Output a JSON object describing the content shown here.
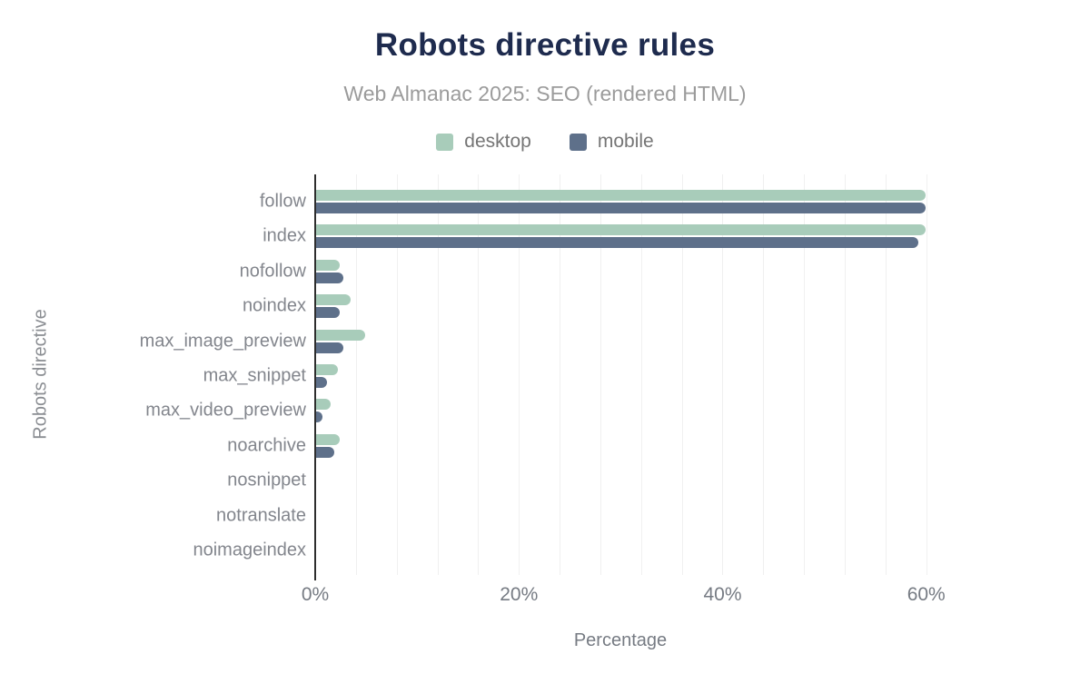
{
  "header": {
    "title": "Robots directive rules",
    "subtitle": "Web Almanac 2025: SEO (rendered HTML)"
  },
  "legend": [
    {
      "label": "desktop",
      "color": "#a8ccba"
    },
    {
      "label": "mobile",
      "color": "#5e708a"
    }
  ],
  "axes": {
    "xlabel": "Percentage",
    "ylabel": "Robots directive"
  },
  "colors": {
    "title": "#1e2b4e",
    "subtitle": "#9b9b9b",
    "desktop_bar": "#a8ccba",
    "mobile_bar": "#5e708a",
    "gridline": "#f0f0f0",
    "axis_line": "#2e2e2e",
    "label_text": "#83868d"
  },
  "chart_data": {
    "type": "bar",
    "orientation": "horizontal",
    "title": "Robots directive rules",
    "subtitle": "Web Almanac 2025: SEO (rendered HTML)",
    "xlabel": "Percentage",
    "ylabel": "Robots directive",
    "unit": "%",
    "xlim": [
      0,
      66
    ],
    "x_ticks": [
      0,
      20,
      40,
      60
    ],
    "x_tick_labels": [
      "0%",
      "20%",
      "40%",
      "60%"
    ],
    "gridline_step_percent": 4,
    "grid": true,
    "legend_position": "top",
    "categories": [
      "follow",
      "index",
      "nofollow",
      "noindex",
      "max_image_preview",
      "max_snippet",
      "max_video_preview",
      "noarchive",
      "nosnippet",
      "notranslate",
      "noimageindex"
    ],
    "series": [
      {
        "name": "desktop",
        "color": "#a8ccba",
        "values": [
          59.9,
          59.9,
          2.4,
          3.5,
          4.9,
          2.2,
          1.5,
          2.4,
          0,
          0,
          0
        ]
      },
      {
        "name": "mobile",
        "color": "#5e708a",
        "values": [
          59.9,
          59.2,
          2.8,
          2.4,
          2.8,
          1.2,
          0.7,
          1.9,
          0,
          0,
          0
        ]
      }
    ]
  }
}
